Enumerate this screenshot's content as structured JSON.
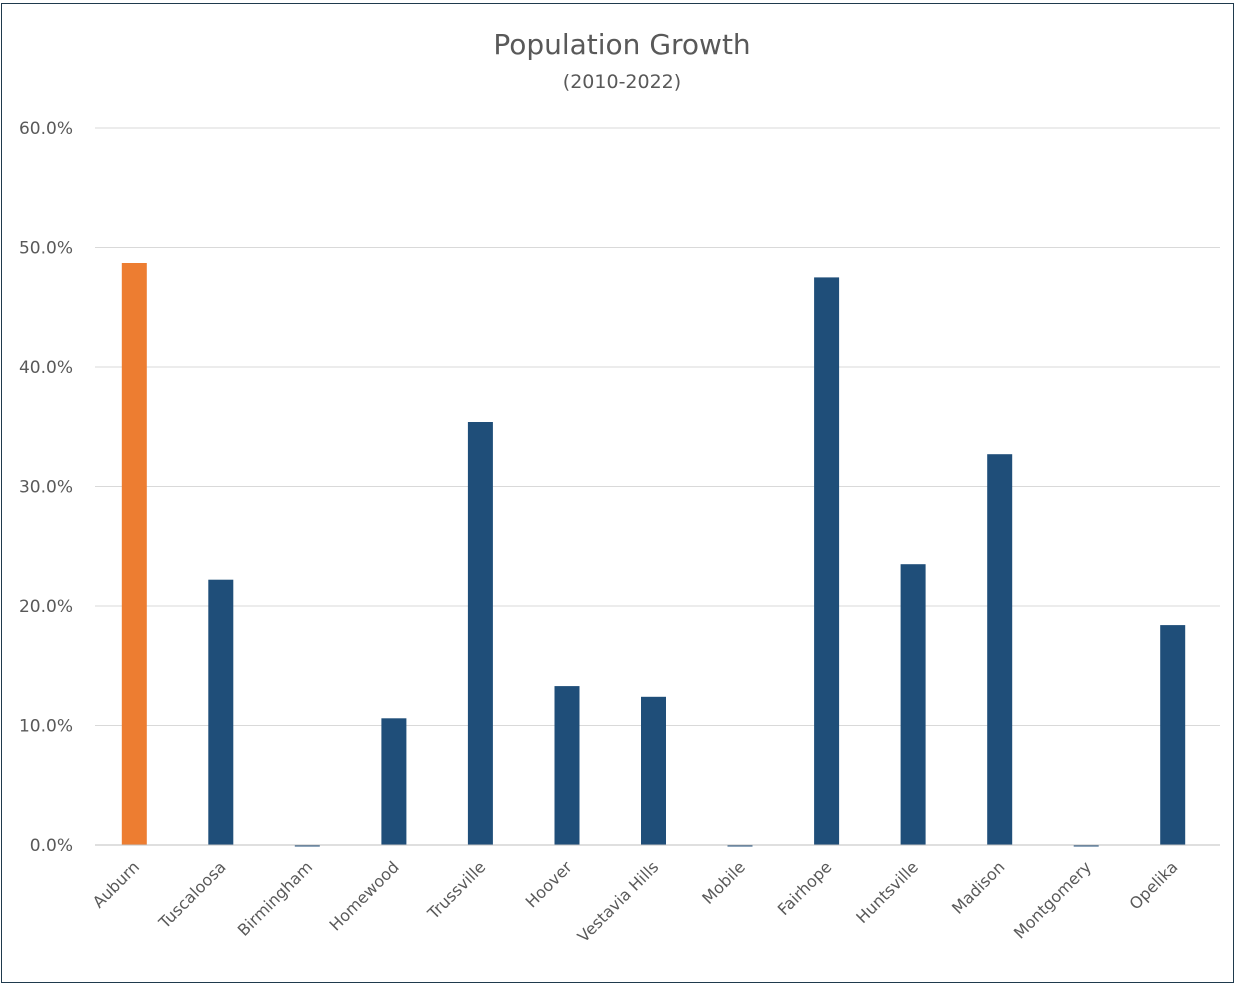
{
  "chart_data": {
    "type": "bar",
    "title": "Population Growth",
    "subtitle": "(2010-2022)",
    "xlabel": "",
    "ylabel": "",
    "ylim": [
      0,
      60
    ],
    "ytick_values": [
      0,
      10,
      20,
      30,
      40,
      50,
      60
    ],
    "ytick_labels": [
      "0.0%",
      "10.0%",
      "20.0%",
      "30.0%",
      "40.0%",
      "50.0%",
      "60.0%"
    ],
    "grid": true,
    "legend": "none",
    "categories": [
      "Auburn",
      "Tuscaloosa",
      "Birmingham",
      "Homewood",
      "Trussville",
      "Hoover",
      "Vestavia Hills",
      "Mobile",
      "Fairhope",
      "Huntsville",
      "Madison",
      "Montgomery",
      "Opelika"
    ],
    "values": [
      48.7,
      22.2,
      -0.1,
      10.6,
      35.4,
      13.3,
      12.4,
      -0.1,
      47.5,
      23.5,
      32.7,
      -0.1,
      18.4
    ],
    "colors": [
      "#ed7d31",
      "#1f4e79",
      "#1f4e79",
      "#1f4e79",
      "#1f4e79",
      "#1f4e79",
      "#1f4e79",
      "#1f4e79",
      "#1f4e79",
      "#1f4e79",
      "#1f4e79",
      "#1f4e79",
      "#1f4e79"
    ],
    "highlight_color": "#ed7d31",
    "bar_color": "#1f4e79"
  }
}
